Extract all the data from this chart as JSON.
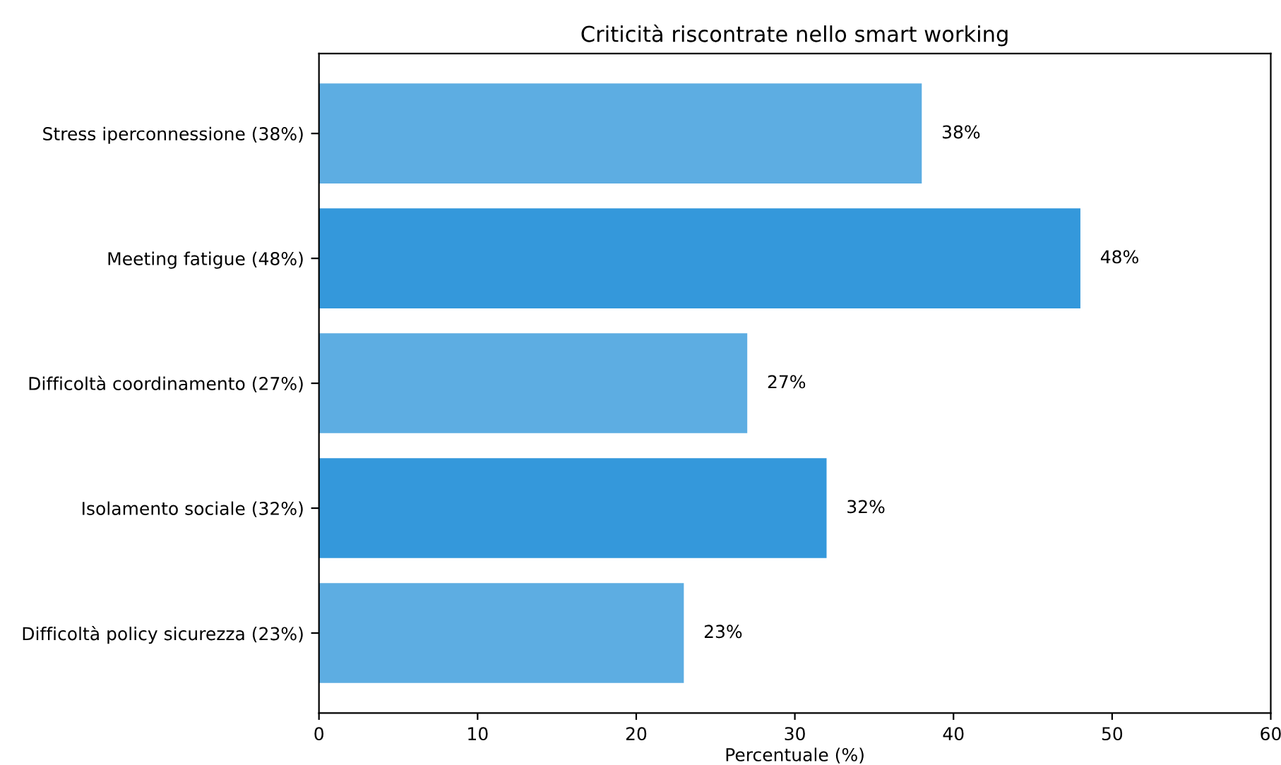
{
  "chart_data": {
    "type": "bar",
    "orientation": "horizontal",
    "title": "Criticità riscontrate nello smart working",
    "xlabel": "Percentuale (%)",
    "categories": [
      "Stress iperconnessione (38%)",
      "Meeting fatigue (48%)",
      "Difficoltà coordinamento (27%)",
      "Isolamento sociale (32%)",
      "Difficoltà policy sicurezza (23%)"
    ],
    "values": [
      38,
      48,
      27,
      32,
      23
    ],
    "colors": [
      "#5dade2",
      "#3498db",
      "#5dade2",
      "#3498db",
      "#5dade2"
    ],
    "value_labels": [
      "38%",
      "48%",
      "27%",
      "32%",
      "23%"
    ],
    "xlim": [
      0,
      60
    ],
    "xticks": [
      0,
      10,
      20,
      30,
      40,
      50,
      60
    ],
    "grid": false,
    "legend": false
  }
}
